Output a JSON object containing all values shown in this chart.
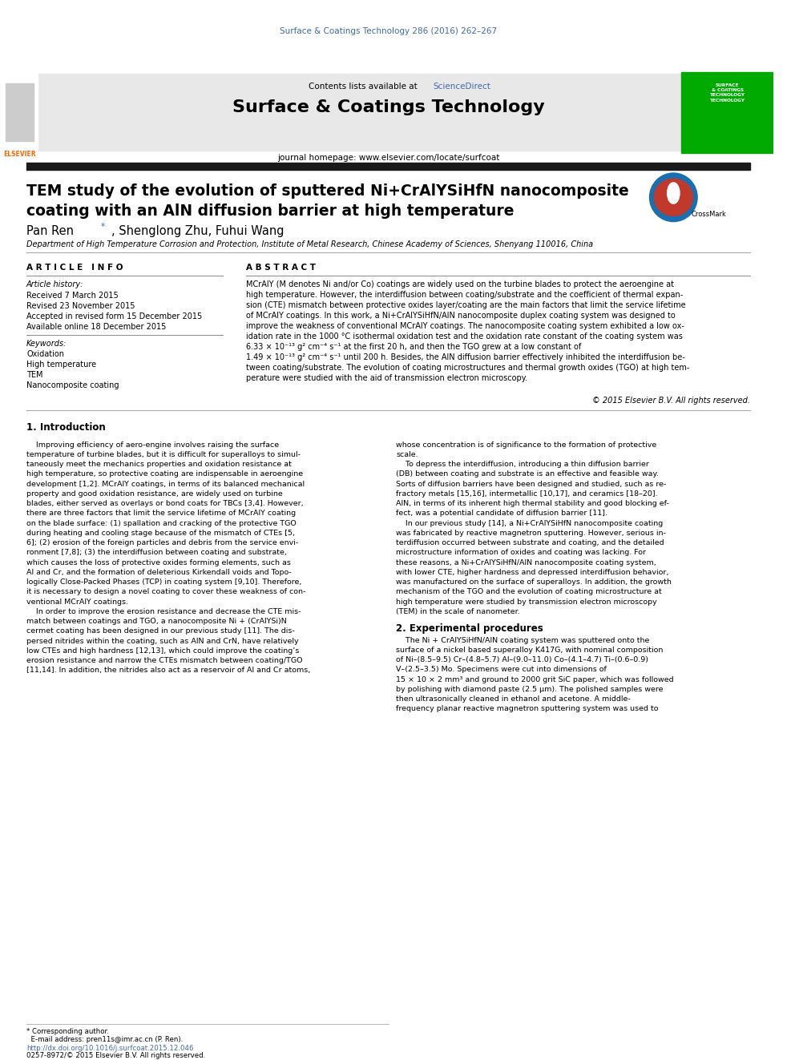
{
  "page_width": 9.92,
  "page_height": 13.23,
  "bg_color": "#ffffff",
  "journal_ref": "Surface & Coatings Technology 286 (2016) 262–267",
  "journal_ref_color": "#4169aa",
  "contents_line": "Contents lists available at",
  "sciencedirect_text": "ScienceDirect",
  "sciencedirect_color": "#4169aa",
  "journal_name": "Surface & Coatings Technology",
  "journal_homepage": "journal homepage: www.elsevier.com/locate/surfcoat",
  "paper_title_line1": "TEM study of the evolution of sputtered Ni+CrAlYSiHfN nanocomposite",
  "paper_title_line2": "coating with an AlN diffusion barrier at high temperature",
  "authors_part1": "Pan Ren ",
  "authors_star": "*",
  "authors_part2": ", Shenglong Zhu, Fuhui Wang",
  "affiliation": "Department of High Temperature Corrosion and Protection, Institute of Metal Research, Chinese Academy of Sciences, Shenyang 110016, China",
  "article_info_label": "A R T I C L E   I N F O",
  "abstract_label": "A B S T R A C T",
  "article_history_label": "Article history:",
  "received": "Received 7 March 2015",
  "revised": "Revised 23 November 2015",
  "accepted": "Accepted in revised form 15 December 2015",
  "available": "Available online 18 December 2015",
  "keywords_label": "Keywords:",
  "keywords": [
    "Oxidation",
    "High temperature",
    "TEM",
    "Nanocomposite coating"
  ],
  "copyright": "© 2015 Elsevier B.V. All rights reserved.",
  "intro_header": "1. Introduction",
  "section2_header": "2. Experimental procedures",
  "footer_note1": "* Corresponding author.",
  "footer_note2": "  E-mail address: pren11s@imr.ac.cn (P. Ren).",
  "doi_line": "http://dx.doi.org/10.1016/j.surfcoat.2015.12.046",
  "issn_line": "0257-8972/© 2015 Elsevier B.V. All rights reserved.",
  "header_bg": "#e8e8e8",
  "elsevier_orange": "#ff6600",
  "crossmark_blue": "#1a6faf",
  "black_bar_color": "#1a1a1a",
  "green_cover_color": "#00aa00",
  "abs_lines": [
    "MCrAlY (M denotes Ni and/or Co) coatings are widely used on the turbine blades to protect the aeroengine at",
    "high temperature. However, the interdiffusion between coating/substrate and the coefficient of thermal expan-",
    "sion (CTE) mismatch between protective oxides layer/coating are the main factors that limit the service lifetime",
    "of MCrAlY coatings. In this work, a Ni+CrAlYSiHfN/AlN nanocomposite duplex coating system was designed to",
    "improve the weakness of conventional MCrAlY coatings. The nanocomposite coating system exhibited a low ox-",
    "idation rate in the 1000 °C isothermal oxidation test and the oxidation rate constant of the coating system was",
    "6.33 × 10⁻¹³ g² cm⁻⁴ s⁻¹ at the first 20 h, and then the TGO grew at a low constant of",
    "1.49 × 10⁻¹³ g² cm⁻⁴ s⁻¹ until 200 h. Besides, the AlN diffusion barrier effectively inhibited the interdiffusion be-",
    "tween coating/substrate. The evolution of coating microstructures and thermal growth oxides (TGO) at high tem-",
    "perature were studied with the aid of transmission electron microscopy."
  ],
  "intro_col1_lines": [
    "    Improving efficiency of aero-engine involves raising the surface",
    "temperature of turbine blades, but it is difficult for superalloys to simul-",
    "taneously meet the mechanics properties and oxidation resistance at",
    "high temperature, so protective coating are indispensable in aeroengine",
    "development [1,2]. MCrAlY coatings, in terms of its balanced mechanical",
    "property and good oxidation resistance, are widely used on turbine",
    "blades, either served as overlays or bond coats for TBCs [3,4]. However,",
    "there are three factors that limit the service lifetime of MCrAlY coating",
    "on the blade surface: (1) spallation and cracking of the protective TGO",
    "during heating and cooling stage because of the mismatch of CTEs [5,",
    "6]; (2) erosion of the foreign particles and debris from the service envi-",
    "ronment [7,8]; (3) the interdiffusion between coating and substrate,",
    "which causes the loss of protective oxides forming elements, such as",
    "Al and Cr, and the formation of deleterious Kirkendall voids and Topo-",
    "logically Close-Packed Phases (TCP) in coating system [9,10]. Therefore,",
    "it is necessary to design a novel coating to cover these weakness of con-",
    "ventional MCrAlY coatings.",
    "    In order to improve the erosion resistance and decrease the CTE mis-",
    "match between coatings and TGO, a nanocomposite Ni + (CrAlYSi)N",
    "cermet coating has been designed in our previous study [11]. The dis-",
    "persed nitrides within the coating, such as AlN and CrN, have relatively",
    "low CTEs and high hardness [12,13], which could improve the coating’s",
    "erosion resistance and narrow the CTEs mismatch between coating/TGO",
    "[11,14]. In addition, the nitrides also act as a reservoir of Al and Cr atoms,"
  ],
  "intro_col2_lines": [
    "whose concentration is of significance to the formation of protective",
    "scale.",
    "    To depress the interdiffusion, introducing a thin diffusion barrier",
    "(DB) between coating and substrate is an effective and feasible way.",
    "Sorts of diffusion barriers have been designed and studied, such as re-",
    "fractory metals [15,16], intermetallic [10,17], and ceramics [18–20].",
    "AlN, in terms of its inherent high thermal stability and good blocking ef-",
    "fect, was a potential candidate of diffusion barrier [11].",
    "    In our previous study [14], a Ni+CrAlYSiHfN nanocomposite coating",
    "was fabricated by reactive magnetron sputtering. However, serious in-",
    "terdiffusion occurred between substrate and coating, and the detailed",
    "microstructure information of oxides and coating was lacking. For",
    "these reasons, a Ni+CrAlYSiHfN/AlN nanocomposite coating system,",
    "with lower CTE, higher hardness and depressed interdiffusion behavior,",
    "was manufactured on the surface of superalloys. In addition, the growth",
    "mechanism of the TGO and the evolution of coating microstructure at",
    "high temperature were studied by transmission electron microscopy",
    "(TEM) in the scale of nanometer."
  ],
  "sec2_col2_lines": [
    "    The Ni + CrAlYSiHfN/AlN coating system was sputtered onto the",
    "surface of a nickel based superalloy K417G, with nominal composition",
    "of Ni–(8.5–9.5) Cr–(4.8–5.7) Al–(9.0–11.0) Co–(4.1–4.7) Ti–(0.6–0.9)",
    "V–(2.5–3.5) Mo. Specimens were cut into dimensions of",
    "15 × 10 × 2 mm³ and ground to 2000 grit SiC paper, which was followed",
    "by polishing with diamond paste (2.5 μm). The polished samples were",
    "then ultrasonically cleaned in ethanol and acetone. A middle-",
    "frequency planar reactive magnetron sputtering system was used to"
  ]
}
